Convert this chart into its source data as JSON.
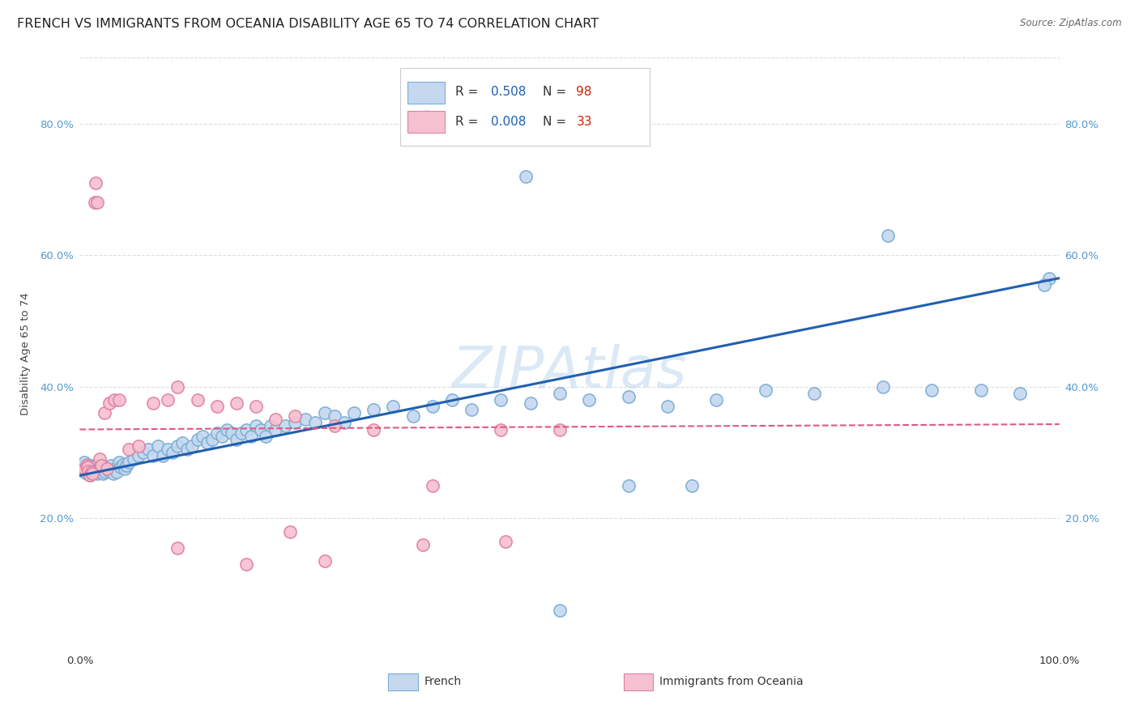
{
  "title": "FRENCH VS IMMIGRANTS FROM OCEANIA DISABILITY AGE 65 TO 74 CORRELATION CHART",
  "source": "Source: ZipAtlas.com",
  "ylabel": "Disability Age 65 to 74",
  "watermark": "ZIPAtlas",
  "xlim": [
    0.0,
    1.0
  ],
  "ylim": [
    0.0,
    0.9
  ],
  "xticks": [
    0.0,
    0.2,
    0.4,
    0.6,
    0.8,
    1.0
  ],
  "xticklabels": [
    "0.0%",
    "",
    "",
    "",
    "",
    "100.0%"
  ],
  "yticks": [
    0.2,
    0.4,
    0.6,
    0.8
  ],
  "yticklabels": [
    "20.0%",
    "40.0%",
    "60.0%",
    "80.0%"
  ],
  "series1_label": "French",
  "series1_R": "0.508",
  "series1_N": "98",
  "series1_face": "#c5d8f0",
  "series1_edge": "#7aadd4",
  "series1_line": "#2060b0",
  "series2_label": "Immigrants from Oceania",
  "series2_R": "0.008",
  "series2_N": "33",
  "series2_face": "#f5c0d0",
  "series2_edge": "#e080a0",
  "series2_line": "#e05880",
  "legend_R_color": "#1a5fb4",
  "legend_N_color": "#cc2200",
  "tick_color": "#5599cc",
  "background_color": "#ffffff",
  "grid_color": "#dddddd",
  "french_trendline_start_y": 0.265,
  "french_trendline_end_y": 0.565,
  "oceania_trendline_y": 0.335,
  "french_x": [
    0.003,
    0.004,
    0.005,
    0.005,
    0.006,
    0.007,
    0.007,
    0.008,
    0.008,
    0.009,
    0.01,
    0.01,
    0.011,
    0.012,
    0.013,
    0.014,
    0.015,
    0.016,
    0.017,
    0.018,
    0.019,
    0.02,
    0.021,
    0.022,
    0.023,
    0.024,
    0.025,
    0.026,
    0.028,
    0.03,
    0.032,
    0.034,
    0.036,
    0.038,
    0.04,
    0.042,
    0.044,
    0.046,
    0.048,
    0.05,
    0.055,
    0.06,
    0.065,
    0.07,
    0.075,
    0.08,
    0.085,
    0.09,
    0.095,
    0.1,
    0.105,
    0.11,
    0.115,
    0.12,
    0.125,
    0.13,
    0.135,
    0.14,
    0.145,
    0.15,
    0.155,
    0.16,
    0.165,
    0.17,
    0.175,
    0.18,
    0.185,
    0.19,
    0.195,
    0.2,
    0.21,
    0.22,
    0.23,
    0.24,
    0.25,
    0.26,
    0.27,
    0.28,
    0.3,
    0.32,
    0.34,
    0.36,
    0.38,
    0.4,
    0.43,
    0.46,
    0.49,
    0.52,
    0.56,
    0.6,
    0.65,
    0.7,
    0.75,
    0.82,
    0.87,
    0.92,
    0.96,
    0.99
  ],
  "french_y": [
    0.275,
    0.28,
    0.27,
    0.285,
    0.272,
    0.268,
    0.278,
    0.274,
    0.282,
    0.271,
    0.277,
    0.265,
    0.28,
    0.268,
    0.275,
    0.27,
    0.278,
    0.272,
    0.28,
    0.268,
    0.275,
    0.27,
    0.278,
    0.272,
    0.28,
    0.268,
    0.275,
    0.27,
    0.278,
    0.272,
    0.28,
    0.268,
    0.275,
    0.27,
    0.285,
    0.278,
    0.282,
    0.275,
    0.28,
    0.285,
    0.29,
    0.295,
    0.3,
    0.305,
    0.295,
    0.31,
    0.295,
    0.305,
    0.3,
    0.31,
    0.315,
    0.305,
    0.31,
    0.32,
    0.325,
    0.315,
    0.32,
    0.33,
    0.325,
    0.335,
    0.33,
    0.32,
    0.33,
    0.335,
    0.325,
    0.34,
    0.335,
    0.325,
    0.34,
    0.335,
    0.34,
    0.345,
    0.35,
    0.345,
    0.36,
    0.355,
    0.345,
    0.36,
    0.365,
    0.37,
    0.355,
    0.37,
    0.38,
    0.365,
    0.38,
    0.375,
    0.39,
    0.38,
    0.385,
    0.37,
    0.38,
    0.395,
    0.39,
    0.4,
    0.395,
    0.395,
    0.39,
    0.565
  ],
  "french_outliers_x": [
    0.455,
    0.825,
    0.985,
    0.49,
    0.56,
    0.625
  ],
  "french_outliers_y": [
    0.72,
    0.63,
    0.555,
    0.06,
    0.25,
    0.25
  ],
  "oceania_x": [
    0.005,
    0.007,
    0.008,
    0.009,
    0.01,
    0.012,
    0.013,
    0.015,
    0.016,
    0.018,
    0.02,
    0.022,
    0.025,
    0.028,
    0.03,
    0.035,
    0.04,
    0.05,
    0.06,
    0.075,
    0.09,
    0.1,
    0.12,
    0.14,
    0.16,
    0.18,
    0.2,
    0.22,
    0.26,
    0.3,
    0.36,
    0.43,
    0.49
  ],
  "oceania_y": [
    0.275,
    0.28,
    0.278,
    0.272,
    0.265,
    0.27,
    0.268,
    0.68,
    0.71,
    0.68,
    0.29,
    0.28,
    0.36,
    0.275,
    0.375,
    0.38,
    0.38,
    0.305,
    0.31,
    0.375,
    0.38,
    0.4,
    0.38,
    0.37,
    0.375,
    0.37,
    0.35,
    0.355,
    0.34,
    0.335,
    0.25,
    0.335,
    0.335
  ],
  "oceania_outliers_x": [
    0.1,
    0.17,
    0.215,
    0.25,
    0.35,
    0.435
  ],
  "oceania_outliers_y": [
    0.155,
    0.13,
    0.18,
    0.135,
    0.16,
    0.165
  ]
}
